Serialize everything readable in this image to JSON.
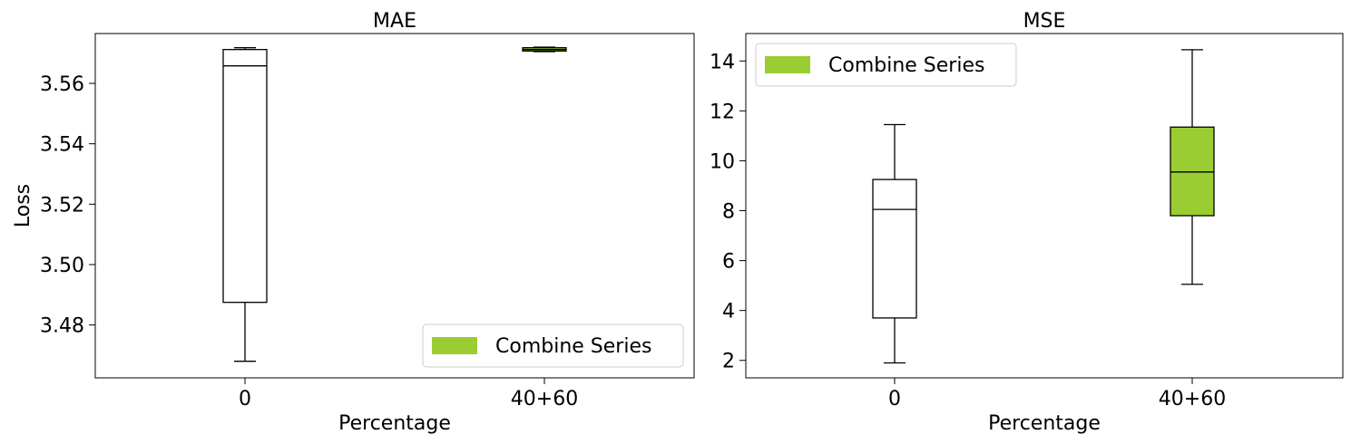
{
  "figure": {
    "box_fill_color": "#9acd32",
    "box_line_color": "#000000"
  },
  "chart_data": [
    {
      "type": "box",
      "title": "MAE",
      "xlabel": "Percentage",
      "ylabel": "Loss",
      "categories": [
        "0",
        "40+60"
      ],
      "ylim": [
        3.4625,
        3.5765
      ],
      "yticks": [
        3.48,
        3.5,
        3.52,
        3.54,
        3.56
      ],
      "ytick_labels": [
        "3.48",
        "3.50",
        "3.52",
        "3.54",
        "3.56"
      ],
      "legend": {
        "label": "Combine Series",
        "location": "lower-right"
      },
      "boxes": [
        {
          "category": "0",
          "whisker_low": 3.468,
          "q1": 3.4875,
          "median": 3.5658,
          "q3": 3.5712,
          "whisker_high": 3.5718,
          "filled": false
        },
        {
          "category": "40+60",
          "whisker_low": 3.5705,
          "q1": 3.5707,
          "median": 3.5712,
          "q3": 3.5718,
          "whisker_high": 3.572,
          "filled": true
        }
      ]
    },
    {
      "type": "box",
      "title": "MSE",
      "xlabel": "Percentage",
      "ylabel": "",
      "categories": [
        "0",
        "40+60"
      ],
      "ylim": [
        1.3,
        15.1
      ],
      "yticks": [
        2,
        4,
        6,
        8,
        10,
        12,
        14
      ],
      "ytick_labels": [
        "2",
        "4",
        "6",
        "8",
        "10",
        "12",
        "14"
      ],
      "legend": {
        "label": "Combine Series",
        "location": "upper-left"
      },
      "boxes": [
        {
          "category": "0",
          "whisker_low": 1.9,
          "q1": 3.7,
          "median": 8.05,
          "q3": 9.25,
          "whisker_high": 11.45,
          "filled": false
        },
        {
          "category": "40+60",
          "whisker_low": 5.05,
          "q1": 7.8,
          "median": 9.55,
          "q3": 11.35,
          "whisker_high": 14.45,
          "filled": true
        }
      ]
    }
  ]
}
